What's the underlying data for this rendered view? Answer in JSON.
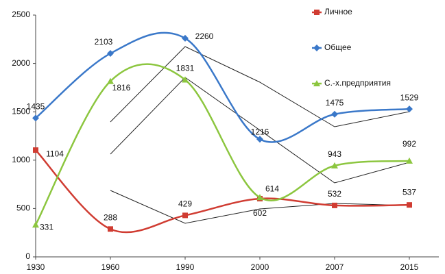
{
  "chart_data": {
    "type": "line",
    "categories": [
      "1930",
      "1960",
      "1990",
      "2000",
      "2007",
      "2015"
    ],
    "series": [
      {
        "name": "Личное",
        "color": "#d03c32",
        "marker": "square",
        "values": [
          1104,
          288,
          429,
          602,
          532,
          537
        ]
      },
      {
        "name": "Общее",
        "color": "#3a78c9",
        "marker": "diamond",
        "values": [
          1435,
          2103,
          2260,
          1216,
          1475,
          1529
        ]
      },
      {
        "name": "С.-х.предприятия",
        "color": "#8cc63f",
        "marker": "triangle",
        "values": [
          331,
          1816,
          1831,
          614,
          943,
          992
        ]
      }
    ],
    "ylim": [
      0,
      2500
    ],
    "yticks": [
      0,
      500,
      1000,
      1500,
      2000,
      2500
    ],
    "smooth": true,
    "legend": "top-right"
  }
}
